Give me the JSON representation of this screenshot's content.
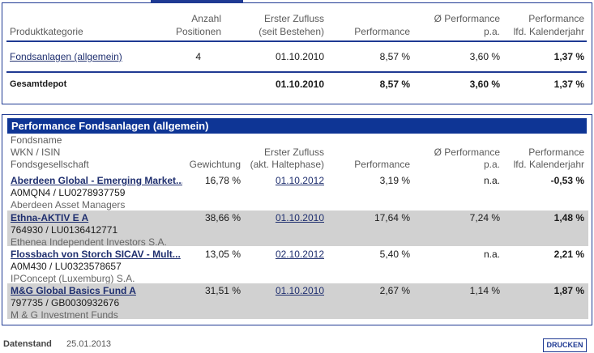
{
  "summary": {
    "headers": {
      "category": "Produktkategorie",
      "positions_line1": "Anzahl",
      "positions_line2": "Positionen",
      "first_inflow_line1": "Erster Zufluss",
      "first_inflow_line2": "(seit Bestehen)",
      "performance": "Performance",
      "perf_pa_line1": "Ø Performance",
      "perf_pa_line2": "p.a.",
      "perf_year_line1": "Performance",
      "perf_year_line2": "lfd. Kalenderjahr"
    },
    "row": {
      "category": "Fondsanlagen (allgemein)",
      "positions": "4",
      "first_inflow": "01.10.2010",
      "performance": "8,57 %",
      "perf_pa": "3,60 %",
      "perf_year": "1,37 %"
    },
    "total": {
      "label": "Gesamtdepot",
      "first_inflow": "01.10.2010",
      "performance": "8,57 %",
      "perf_pa": "3,60 %",
      "perf_year": "1,37 %"
    }
  },
  "detail": {
    "title": "Performance Fondsanlagen (allgemein)",
    "headers": {
      "name_line1": "Fondsname",
      "name_line2": "WKN / ISIN",
      "name_line3": "Fondsgesellschaft",
      "weight": "Gewichtung",
      "first_inflow_line1": "Erster Zufluss",
      "first_inflow_line2": "(akt. Haltephase)",
      "performance": "Performance",
      "perf_pa_line1": "Ø Performance",
      "perf_pa_line2": "p.a.",
      "perf_year_line1": "Performance",
      "perf_year_line2": "lfd. Kalenderjahr"
    },
    "funds": [
      {
        "name": "Aberdeen Global - Emerging Market...",
        "wkn_isin": "A0MQN4 /  LU0278937759",
        "company": "Aberdeen Asset Managers",
        "weight": "16,78 %",
        "first_inflow": "01.10.2012",
        "performance": "3,19 %",
        "perf_pa": "n.a.",
        "perf_year": "-0,53 %"
      },
      {
        "name": "Ethna-AKTIV E A",
        "wkn_isin": "764930 /  LU0136412771",
        "company": "Ethenea Independent Investors S.A.",
        "weight": "38,66 %",
        "first_inflow": "01.10.2010",
        "performance": "17,64 %",
        "perf_pa": "7,24 %",
        "perf_year": "1,48 %"
      },
      {
        "name": "Flossbach von Storch SICAV - Mult...",
        "wkn_isin": "A0M430 /  LU0323578657",
        "company": "IPConcept (Luxemburg) S.A.",
        "weight": "13,05 %",
        "first_inflow": "02.10.2012",
        "performance": "5,40 %",
        "perf_pa": "n.a.",
        "perf_year": "2,21 %"
      },
      {
        "name": "M&G Global Basics Fund A",
        "wkn_isin": "797735 /  GB0030932676",
        "company": "M & G Investment Funds",
        "weight": "31,51 %",
        "first_inflow": "01.10.2010",
        "performance": "2,67 %",
        "perf_pa": "1,14 %",
        "perf_year": "1,87 %"
      }
    ]
  },
  "footer": {
    "label": "Datenstand",
    "date": "25.01.2013",
    "print_button": "DRUCKEN"
  }
}
